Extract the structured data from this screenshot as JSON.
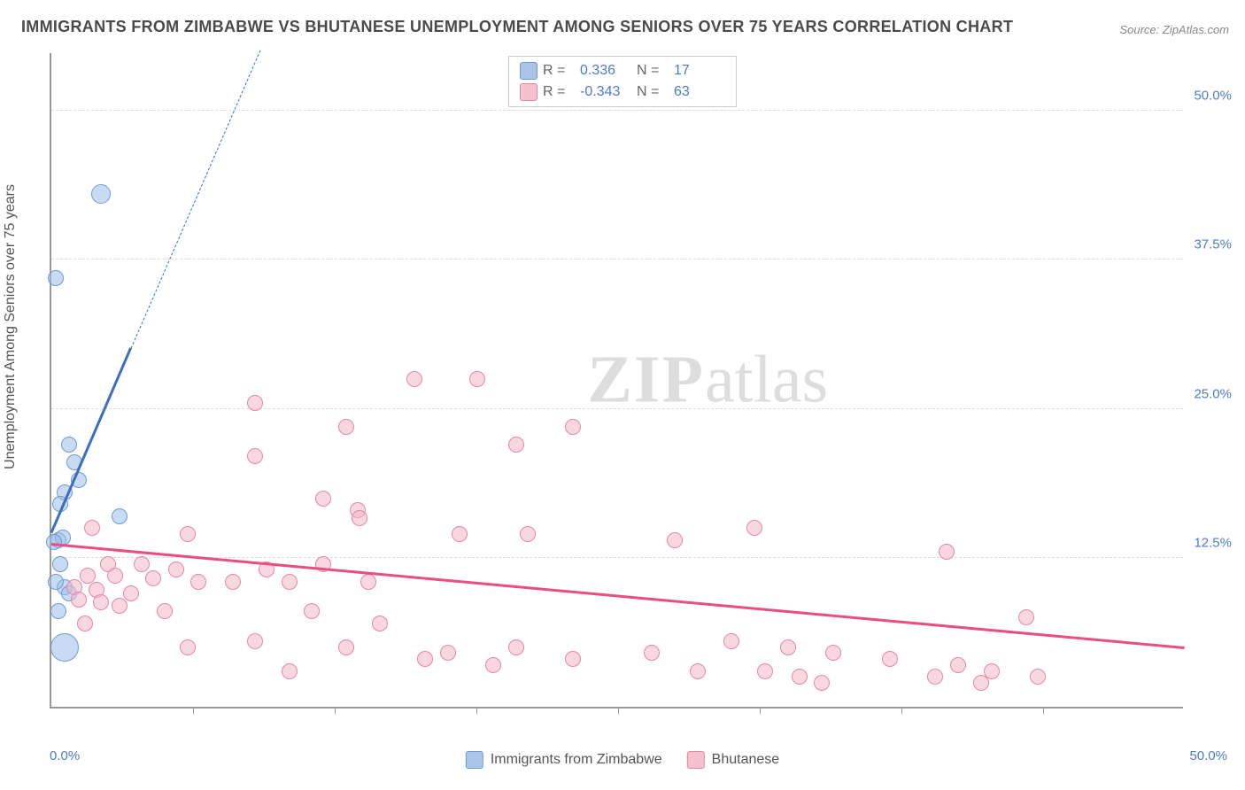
{
  "title": "IMMIGRANTS FROM ZIMBABWE VS BHUTANESE UNEMPLOYMENT AMONG SENIORS OVER 75 YEARS CORRELATION CHART",
  "source": "Source: ZipAtlas.com",
  "watermark_1": "ZIP",
  "watermark_2": "atlas",
  "ylabel": "Unemployment Among Seniors over 75 years",
  "chart": {
    "type": "scatter",
    "xlim": [
      0,
      50
    ],
    "ylim": [
      0,
      55
    ],
    "ytick_positions": [
      12.5,
      25.0,
      37.5,
      50.0
    ],
    "ytick_labels": [
      "12.5%",
      "25.0%",
      "37.5%",
      "50.0%"
    ],
    "xtick_positions": [
      6.25,
      12.5,
      18.75,
      25,
      31.25,
      37.5,
      43.75
    ],
    "x_start_label": "0.0%",
    "x_end_label": "50.0%",
    "grid_color": "#dddddd",
    "axis_color": "#999999",
    "background_color": "#ffffff"
  },
  "legend_top": {
    "r_label": "R  =",
    "n_label": "N  =",
    "rows": [
      {
        "swatch_fill": "#a9c5ea",
        "swatch_border": "#6f9ad3",
        "r": "0.336",
        "n": "17"
      },
      {
        "swatch_fill": "#f6c1ce",
        "swatch_border": "#e588a3",
        "r": "-0.343",
        "n": "63"
      }
    ]
  },
  "legend_bottom": {
    "items": [
      {
        "swatch_fill": "#a9c5ea",
        "swatch_border": "#6f9ad3",
        "label": "Immigrants from Zimbabwe"
      },
      {
        "swatch_fill": "#f6c1ce",
        "swatch_border": "#e588a3",
        "label": "Bhutanese"
      }
    ]
  },
  "series": [
    {
      "name": "zimbabwe",
      "marker_fill": "rgba(157,190,231,0.55)",
      "marker_border": "#6f9ad3",
      "marker_radius": 9,
      "trend_color": "#3b6fbf",
      "trend_width": 3,
      "trend_solid": {
        "x1": 0,
        "y1": 14.5,
        "x2": 3.5,
        "y2": 30
      },
      "trend_dashed": {
        "x1": 3.5,
        "y1": 30,
        "x2": 9.2,
        "y2": 55
      },
      "points": [
        {
          "x": 0.2,
          "y": 36.0,
          "r": 9
        },
        {
          "x": 2.2,
          "y": 43.0,
          "r": 11
        },
        {
          "x": 1.0,
          "y": 20.5,
          "r": 9
        },
        {
          "x": 1.2,
          "y": 19.0,
          "r": 9
        },
        {
          "x": 0.8,
          "y": 22.0,
          "r": 9
        },
        {
          "x": 0.6,
          "y": 18.0,
          "r": 9
        },
        {
          "x": 0.4,
          "y": 17.0,
          "r": 9
        },
        {
          "x": 3.0,
          "y": 16.0,
          "r": 9
        },
        {
          "x": 0.3,
          "y": 14.0,
          "r": 9
        },
        {
          "x": 0.5,
          "y": 14.2,
          "r": 9
        },
        {
          "x": 0.1,
          "y": 13.8,
          "r": 9
        },
        {
          "x": 0.4,
          "y": 12.0,
          "r": 9
        },
        {
          "x": 0.6,
          "y": 10.0,
          "r": 9
        },
        {
          "x": 0.2,
          "y": 10.5,
          "r": 9
        },
        {
          "x": 0.8,
          "y": 9.5,
          "r": 9
        },
        {
          "x": 0.3,
          "y": 8.0,
          "r": 9
        },
        {
          "x": 0.6,
          "y": 5.0,
          "r": 16
        }
      ]
    },
    {
      "name": "bhutanese",
      "marker_fill": "rgba(244,182,200,0.55)",
      "marker_border": "#e588a3",
      "marker_radius": 9,
      "trend_color": "#e94d82",
      "trend_width": 3,
      "trend_solid": {
        "x1": 0,
        "y1": 13.5,
        "x2": 50,
        "y2": 4.8
      },
      "points": [
        {
          "x": 16.0,
          "y": 27.5
        },
        {
          "x": 18.8,
          "y": 27.5
        },
        {
          "x": 9.0,
          "y": 25.5
        },
        {
          "x": 13.0,
          "y": 23.5
        },
        {
          "x": 23.0,
          "y": 23.5
        },
        {
          "x": 20.5,
          "y": 22.0
        },
        {
          "x": 9.0,
          "y": 21.0
        },
        {
          "x": 12.0,
          "y": 17.5
        },
        {
          "x": 13.5,
          "y": 16.5
        },
        {
          "x": 13.6,
          "y": 15.8
        },
        {
          "x": 1.8,
          "y": 15.0
        },
        {
          "x": 31.0,
          "y": 15.0
        },
        {
          "x": 6.0,
          "y": 14.5
        },
        {
          "x": 18.0,
          "y": 14.5
        },
        {
          "x": 21.0,
          "y": 14.5
        },
        {
          "x": 27.5,
          "y": 14.0
        },
        {
          "x": 39.5,
          "y": 13.0
        },
        {
          "x": 2.5,
          "y": 12.0
        },
        {
          "x": 4.0,
          "y": 12.0
        },
        {
          "x": 5.5,
          "y": 11.5
        },
        {
          "x": 9.5,
          "y": 11.5
        },
        {
          "x": 12.0,
          "y": 12.0
        },
        {
          "x": 1.6,
          "y": 11.0
        },
        {
          "x": 2.8,
          "y": 11.0
        },
        {
          "x": 4.5,
          "y": 10.8
        },
        {
          "x": 6.5,
          "y": 10.5
        },
        {
          "x": 8.0,
          "y": 10.5
        },
        {
          "x": 10.5,
          "y": 10.5
        },
        {
          "x": 14.0,
          "y": 10.5
        },
        {
          "x": 1.0,
          "y": 10.0
        },
        {
          "x": 2.0,
          "y": 9.8
        },
        {
          "x": 3.5,
          "y": 9.5
        },
        {
          "x": 1.2,
          "y": 9.0
        },
        {
          "x": 2.2,
          "y": 8.8
        },
        {
          "x": 3.0,
          "y": 8.5
        },
        {
          "x": 5.0,
          "y": 8.0
        },
        {
          "x": 11.5,
          "y": 8.0
        },
        {
          "x": 1.5,
          "y": 7.0
        },
        {
          "x": 14.5,
          "y": 7.0
        },
        {
          "x": 43.0,
          "y": 7.5
        },
        {
          "x": 6.0,
          "y": 5.0
        },
        {
          "x": 9.0,
          "y": 5.5
        },
        {
          "x": 13.0,
          "y": 5.0
        },
        {
          "x": 16.5,
          "y": 4.0
        },
        {
          "x": 17.5,
          "y": 4.5
        },
        {
          "x": 19.5,
          "y": 3.5
        },
        {
          "x": 20.5,
          "y": 5.0
        },
        {
          "x": 23.0,
          "y": 4.0
        },
        {
          "x": 26.5,
          "y": 4.5
        },
        {
          "x": 28.5,
          "y": 3.0
        },
        {
          "x": 30.0,
          "y": 5.5
        },
        {
          "x": 31.5,
          "y": 3.0
        },
        {
          "x": 32.5,
          "y": 5.0
        },
        {
          "x": 33.0,
          "y": 2.5
        },
        {
          "x": 34.5,
          "y": 4.5
        },
        {
          "x": 34.0,
          "y": 2.0
        },
        {
          "x": 37.0,
          "y": 4.0
        },
        {
          "x": 39.0,
          "y": 2.5
        },
        {
          "x": 40.0,
          "y": 3.5
        },
        {
          "x": 41.0,
          "y": 2.0
        },
        {
          "x": 41.5,
          "y": 3.0
        },
        {
          "x": 43.5,
          "y": 2.5
        },
        {
          "x": 10.5,
          "y": 3.0
        }
      ]
    }
  ]
}
